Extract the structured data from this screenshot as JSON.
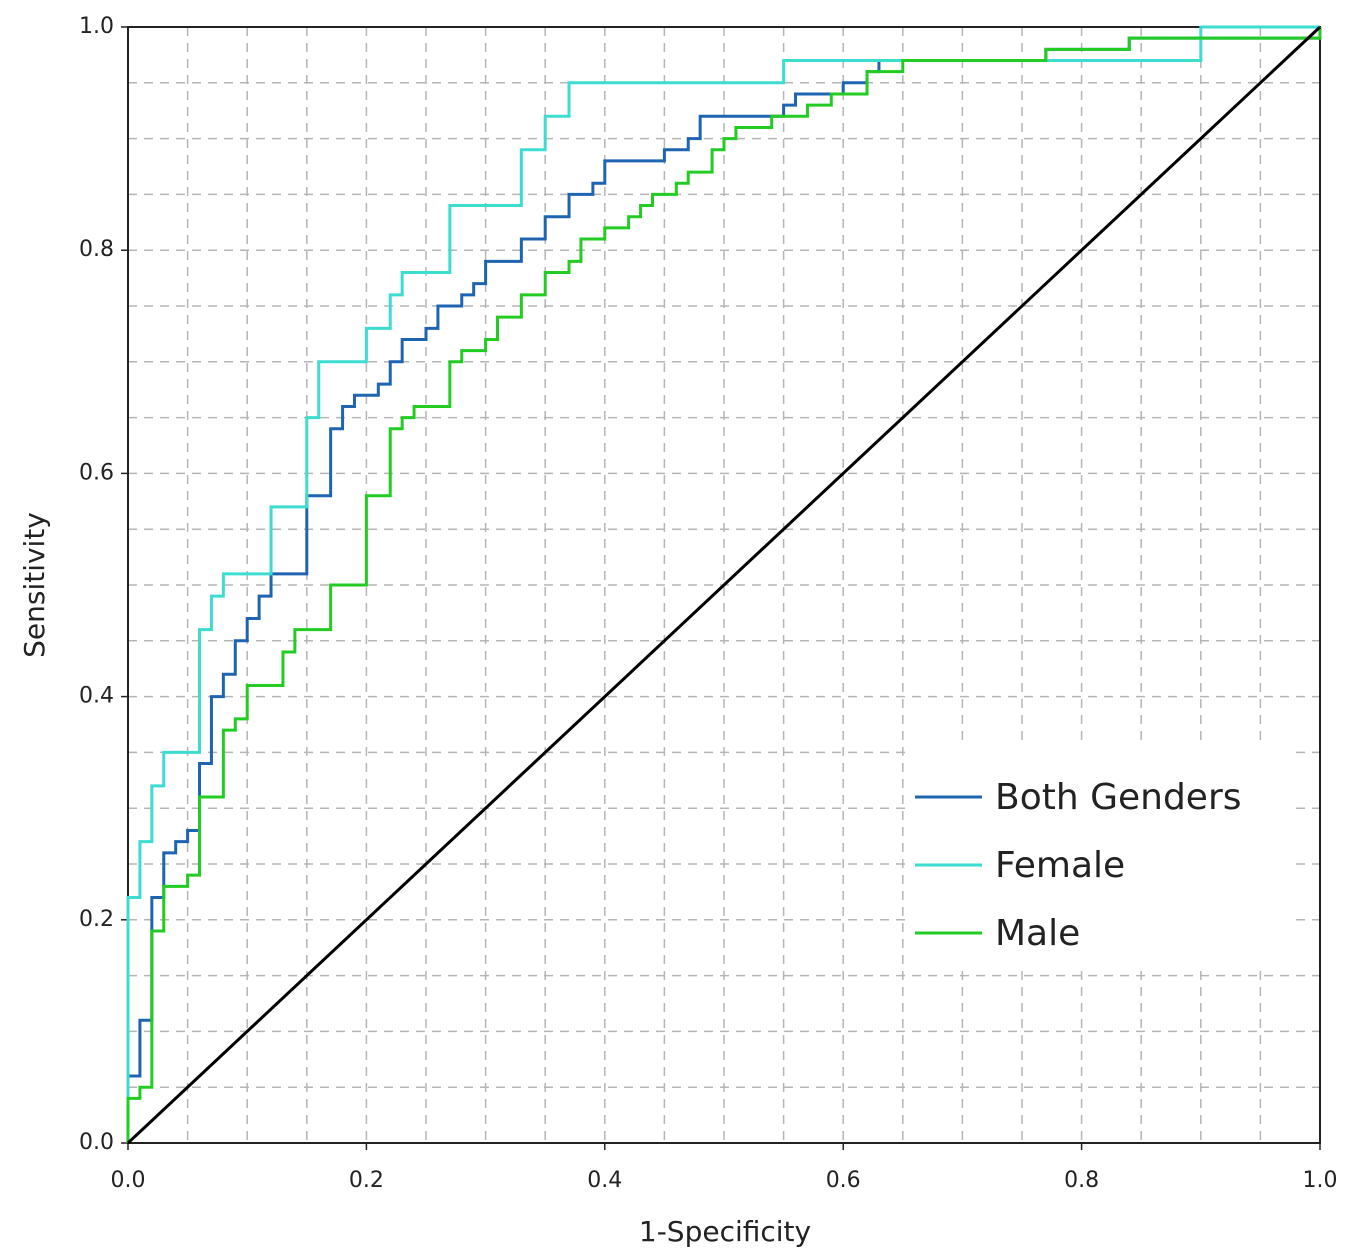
{
  "chart_data": {
    "type": "line",
    "xlabel": "1-Specificity",
    "ylabel": "Sensitivity",
    "xlim": [
      0,
      1
    ],
    "ylim": [
      0,
      1
    ],
    "xticks": [
      {
        "value": 0,
        "label": "0.0"
      },
      0.2,
      0.4,
      0.6,
      0.8,
      {
        "value": 1,
        "label": "1.0"
      }
    ],
    "yticks": [
      {
        "value": 0,
        "label": "0.0"
      },
      0.2,
      0.4,
      0.6,
      0.8,
      {
        "value": 1,
        "label": "1.0"
      }
    ],
    "grid": true,
    "xgrid": [
      0.05,
      0.1,
      0.15,
      0.2,
      0.25,
      0.3,
      0.35,
      0.4,
      0.45,
      0.5,
      0.55,
      0.6,
      0.65,
      0.7,
      0.75,
      0.8,
      0.85,
      0.9,
      0.95
    ],
    "ygrid": [
      0.05,
      0.1,
      0.15,
      0.2,
      0.25,
      0.3,
      0.35,
      0.4,
      0.45,
      0.5,
      0.55,
      0.6,
      0.65,
      0.7,
      0.75,
      0.8,
      0.85,
      0.9,
      0.95
    ],
    "legend": "lower right",
    "series": [
      {
        "name": "Both Genders",
        "color": "#1f64b0",
        "x": [
          0,
          0,
          0.01,
          0.01,
          0.02,
          0.02,
          0.03,
          0.03,
          0.04,
          0.04,
          0.05,
          0.05,
          0.06,
          0.06,
          0.07,
          0.07,
          0.08,
          0.08,
          0.09,
          0.09,
          0.1,
          0.1,
          0.11,
          0.11,
          0.12,
          0.12,
          0.15,
          0.15,
          0.17,
          0.17,
          0.18,
          0.18,
          0.19,
          0.19,
          0.21,
          0.21,
          0.22,
          0.22,
          0.23,
          0.23,
          0.25,
          0.25,
          0.26,
          0.26,
          0.28,
          0.28,
          0.29,
          0.29,
          0.3,
          0.3,
          0.33,
          0.33,
          0.35,
          0.35,
          0.37,
          0.37,
          0.39,
          0.39,
          0.4,
          0.4,
          0.45,
          0.45,
          0.47,
          0.47,
          0.48,
          0.48,
          0.55,
          0.55,
          0.56,
          0.56,
          0.6,
          0.6,
          0.62,
          0.62,
          0.63,
          0.63,
          0.77,
          0.77,
          0.84,
          0.84,
          1,
          1
        ],
        "values": [
          0,
          0.06,
          0.06,
          0.11,
          0.11,
          0.22,
          0.22,
          0.26,
          0.26,
          0.27,
          0.27,
          0.28,
          0.28,
          0.34,
          0.34,
          0.4,
          0.4,
          0.42,
          0.42,
          0.45,
          0.45,
          0.47,
          0.47,
          0.49,
          0.49,
          0.51,
          0.51,
          0.58,
          0.58,
          0.64,
          0.64,
          0.66,
          0.66,
          0.67,
          0.67,
          0.68,
          0.68,
          0.7,
          0.7,
          0.72,
          0.72,
          0.73,
          0.73,
          0.75,
          0.75,
          0.76,
          0.76,
          0.77,
          0.77,
          0.79,
          0.79,
          0.81,
          0.81,
          0.83,
          0.83,
          0.85,
          0.85,
          0.86,
          0.86,
          0.88,
          0.88,
          0.89,
          0.89,
          0.9,
          0.9,
          0.92,
          0.92,
          0.93,
          0.93,
          0.94,
          0.94,
          0.95,
          0.95,
          0.96,
          0.96,
          0.97,
          0.97,
          0.98,
          0.98,
          0.99,
          0.99,
          1
        ]
      },
      {
        "name": "Female",
        "color": "#3ddcd0",
        "x": [
          0,
          0,
          0.01,
          0.01,
          0.02,
          0.02,
          0.03,
          0.03,
          0.06,
          0.06,
          0.07,
          0.07,
          0.08,
          0.08,
          0.12,
          0.12,
          0.15,
          0.15,
          0.16,
          0.16,
          0.2,
          0.2,
          0.22,
          0.22,
          0.23,
          0.23,
          0.27,
          0.27,
          0.33,
          0.33,
          0.35,
          0.35,
          0.37,
          0.37,
          0.55,
          0.55,
          0.9,
          0.9,
          1,
          1
        ],
        "values": [
          0,
          0.22,
          0.22,
          0.27,
          0.27,
          0.32,
          0.32,
          0.35,
          0.35,
          0.46,
          0.46,
          0.49,
          0.49,
          0.51,
          0.51,
          0.57,
          0.57,
          0.65,
          0.65,
          0.7,
          0.7,
          0.73,
          0.73,
          0.76,
          0.76,
          0.78,
          0.78,
          0.84,
          0.84,
          0.89,
          0.89,
          0.92,
          0.92,
          0.95,
          0.95,
          0.97,
          0.97,
          1,
          1,
          1
        ]
      },
      {
        "name": "Male",
        "color": "#22cc22",
        "x": [
          0,
          0,
          0.01,
          0.01,
          0.02,
          0.02,
          0.03,
          0.03,
          0.05,
          0.05,
          0.06,
          0.06,
          0.08,
          0.08,
          0.09,
          0.09,
          0.1,
          0.1,
          0.13,
          0.13,
          0.14,
          0.14,
          0.17,
          0.17,
          0.2,
          0.2,
          0.22,
          0.22,
          0.23,
          0.23,
          0.24,
          0.24,
          0.27,
          0.27,
          0.28,
          0.28,
          0.3,
          0.3,
          0.31,
          0.31,
          0.33,
          0.33,
          0.35,
          0.35,
          0.37,
          0.37,
          0.38,
          0.38,
          0.4,
          0.4,
          0.42,
          0.42,
          0.43,
          0.43,
          0.44,
          0.44,
          0.46,
          0.46,
          0.47,
          0.47,
          0.49,
          0.49,
          0.5,
          0.5,
          0.51,
          0.51,
          0.54,
          0.54,
          0.57,
          0.57,
          0.59,
          0.59,
          0.62,
          0.62,
          0.65,
          0.65,
          0.77,
          0.77,
          0.84,
          0.84,
          1,
          1
        ],
        "values": [
          0,
          0.04,
          0.04,
          0.05,
          0.05,
          0.19,
          0.19,
          0.23,
          0.23,
          0.24,
          0.24,
          0.31,
          0.31,
          0.37,
          0.37,
          0.38,
          0.38,
          0.41,
          0.41,
          0.44,
          0.44,
          0.46,
          0.46,
          0.5,
          0.5,
          0.58,
          0.58,
          0.64,
          0.64,
          0.65,
          0.65,
          0.66,
          0.66,
          0.7,
          0.7,
          0.71,
          0.71,
          0.72,
          0.72,
          0.74,
          0.74,
          0.76,
          0.76,
          0.78,
          0.78,
          0.79,
          0.79,
          0.81,
          0.81,
          0.82,
          0.82,
          0.83,
          0.83,
          0.84,
          0.84,
          0.85,
          0.85,
          0.86,
          0.86,
          0.87,
          0.87,
          0.89,
          0.89,
          0.9,
          0.9,
          0.91,
          0.91,
          0.92,
          0.92,
          0.93,
          0.93,
          0.94,
          0.94,
          0.96,
          0.96,
          0.97,
          0.97,
          0.98,
          0.98,
          0.99,
          0.99,
          1
        ]
      },
      {
        "color": "#000000",
        "x": [
          0,
          1
        ],
        "values": [
          0,
          1
        ]
      }
    ]
  }
}
